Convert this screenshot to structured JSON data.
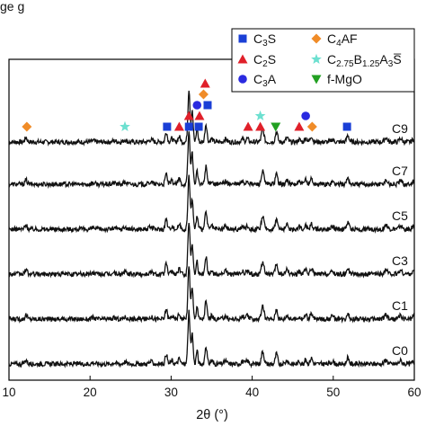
{
  "caption_fragment": "ge                                                     g",
  "chart_data": {
    "type": "line",
    "xlabel": "2θ (°)",
    "ylabel": "",
    "xlim": [
      10,
      60
    ],
    "xticks": [
      10,
      20,
      30,
      40,
      50,
      60
    ],
    "grid": false,
    "legend_position": "top-right",
    "series": [
      {
        "name": "C9"
      },
      {
        "name": "C7"
      },
      {
        "name": "C5"
      },
      {
        "name": "C3"
      },
      {
        "name": "C1"
      },
      {
        "name": "C0"
      }
    ],
    "peak_positions_2theta": [
      12.1,
      29.4,
      32.2,
      32.6,
      34.3,
      39.4,
      41.3,
      43.0,
      44.3,
      47.3,
      51.8,
      56.5,
      58.3
    ],
    "legend": [
      {
        "key": "C3S",
        "base": "C",
        "sub1": "3",
        "rest": "S",
        "marker": "square",
        "color": "#1a3fd6"
      },
      {
        "key": "C4AF",
        "base": "C",
        "sub1": "4",
        "rest": "AF",
        "marker": "diamond",
        "color": "#f08c28"
      },
      {
        "key": "C2S",
        "base": "C",
        "sub1": "2",
        "rest": "S",
        "marker": "triangle-up",
        "color": "#e0202a"
      },
      {
        "key": "C2.75B1.25A3S",
        "base": "C",
        "sub1": "2.75",
        "mid1": "B",
        "sub2": "1.25",
        "mid2": "A",
        "sub3": "3",
        "rest": "S̅",
        "marker": "star",
        "color": "#6de0d0"
      },
      {
        "key": "C3A",
        "base": "C",
        "sub1": "3",
        "rest": "A",
        "marker": "circle",
        "color": "#2a2ae0"
      },
      {
        "key": "f-MgO",
        "base": "f-MgO",
        "sub1": "",
        "rest": "",
        "marker": "triangle-down",
        "color": "#22a022"
      }
    ],
    "phase_markers": [
      {
        "phase": "C4AF",
        "x": 12.2
      },
      {
        "phase": "C2.75B1.25A3S",
        "x": 24.3
      },
      {
        "phase": "C3S",
        "x": 29.5
      },
      {
        "phase": "C2S",
        "x": 31.0
      },
      {
        "phase": "C3S",
        "x": 32.2
      },
      {
        "phase": "C2S",
        "x": 32.2
      },
      {
        "phase": "C3S",
        "x": 33.4
      },
      {
        "phase": "C2S",
        "x": 33.5
      },
      {
        "phase": "C3A",
        "x": 33.2
      },
      {
        "phase": "C4AF",
        "x": 34.0
      },
      {
        "phase": "C2S",
        "x": 34.2
      },
      {
        "phase": "C3S",
        "x": 34.5
      },
      {
        "phase": "C2S",
        "x": 39.5
      },
      {
        "phase": "C2S",
        "x": 41.0
      },
      {
        "phase": "C2.75B1.25A3S",
        "x": 41.0
      },
      {
        "phase": "f-MgO",
        "x": 42.9
      },
      {
        "phase": "C2S",
        "x": 45.8
      },
      {
        "phase": "C3A",
        "x": 46.6
      },
      {
        "phase": "C4AF",
        "x": 47.4
      },
      {
        "phase": "C3S",
        "x": 51.7
      }
    ]
  }
}
